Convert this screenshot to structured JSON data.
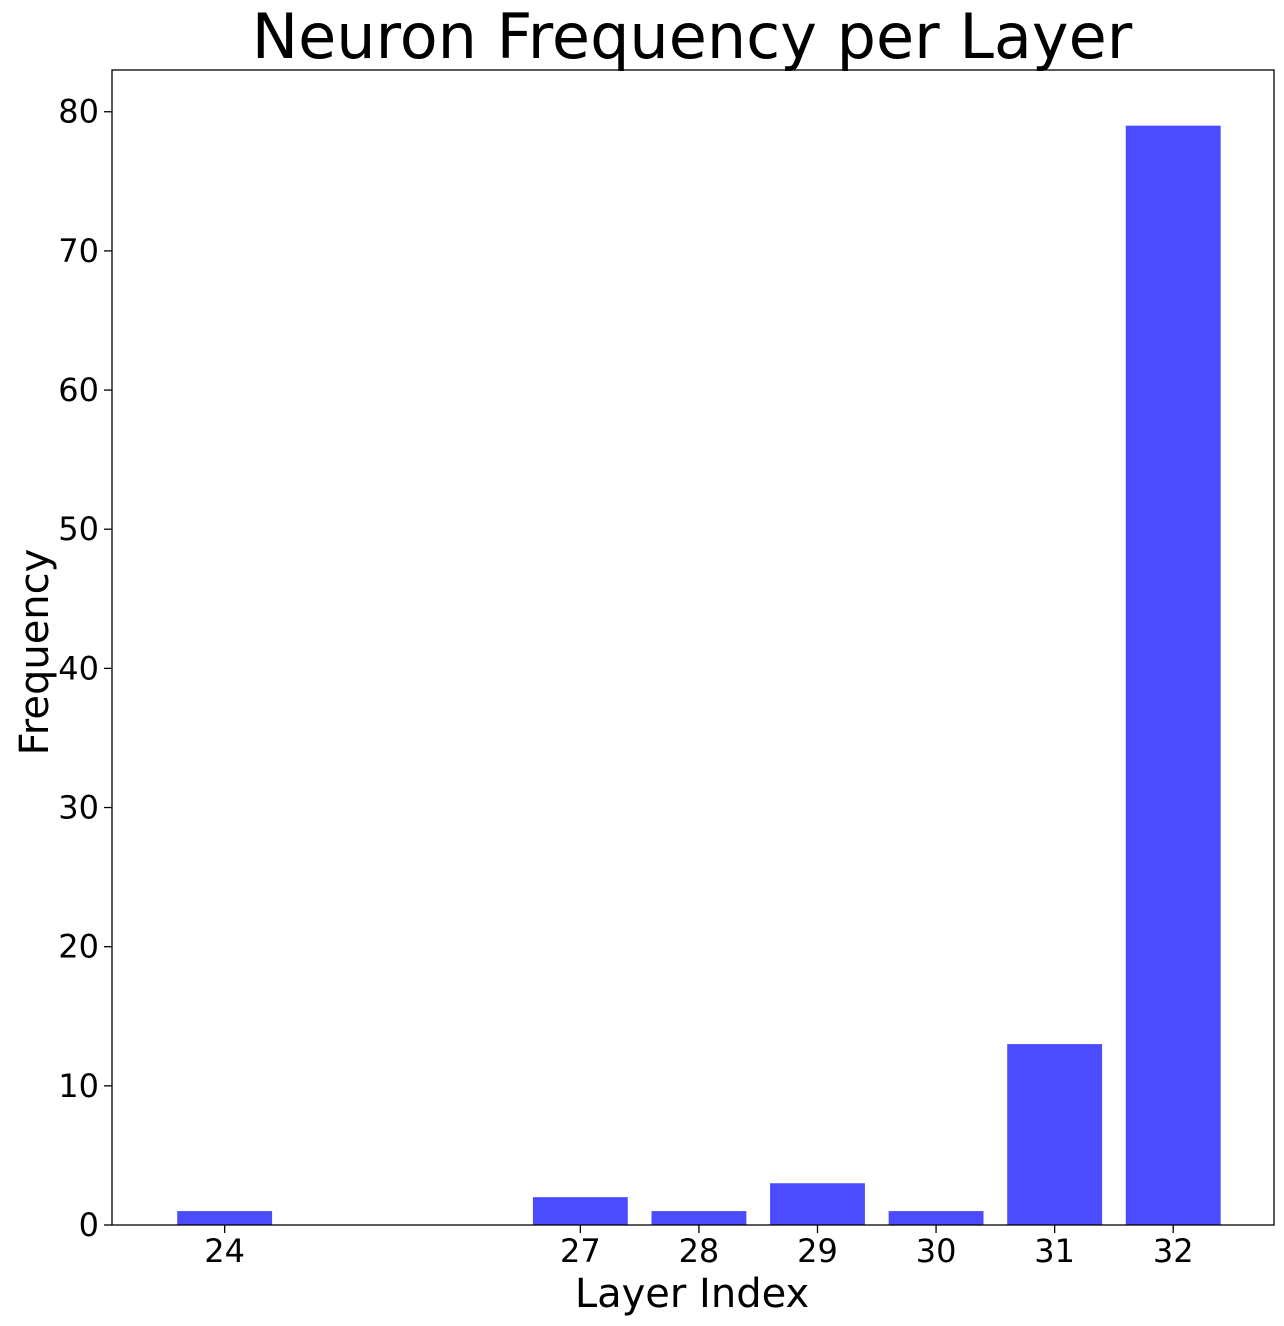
{
  "chart_data": {
    "type": "bar",
    "title": "Neuron Frequency per Layer",
    "xlabel": "Layer Index",
    "ylabel": "Frequency",
    "x": [
      24,
      27,
      28,
      29,
      30,
      31,
      32
    ],
    "values": [
      1,
      2,
      1,
      3,
      1,
      13,
      79
    ],
    "x_ticks": [
      "24",
      "27",
      "28",
      "29",
      "30",
      "31",
      "32"
    ],
    "y_ticks": [
      "0",
      "10",
      "20",
      "30",
      "40",
      "50",
      "60",
      "70",
      "80"
    ],
    "xlim": [
      23.05,
      32.85
    ],
    "ylim": [
      0,
      83
    ],
    "bar_width": 0.8,
    "bar_color": "#4b4bff",
    "grid": false,
    "legend": null
  }
}
